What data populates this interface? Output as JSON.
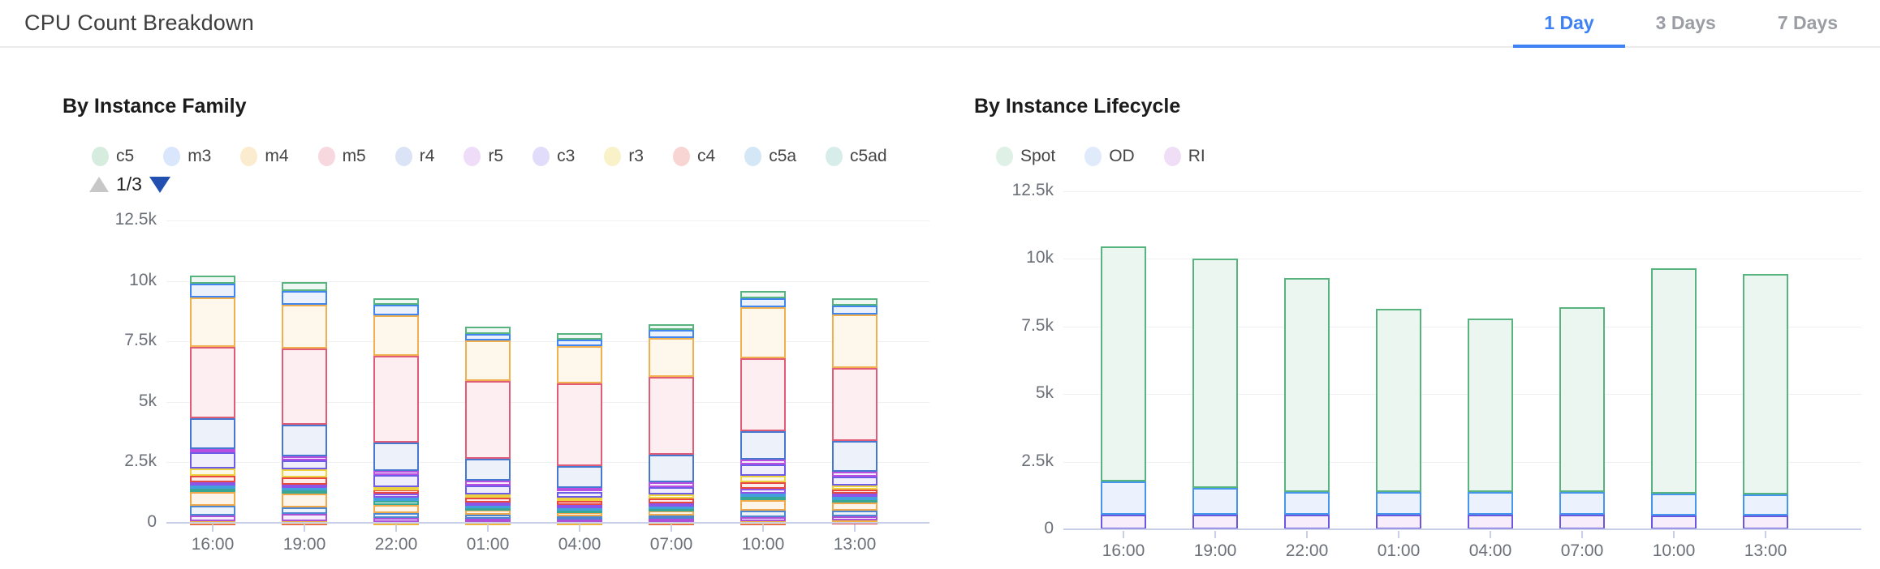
{
  "header": {
    "title": "CPU Count Breakdown",
    "tabs": [
      {
        "label": "1 Day",
        "active": true
      },
      {
        "label": "3 Days",
        "active": false
      },
      {
        "label": "7 Days",
        "active": false
      }
    ],
    "accent_color": "#3c82f5"
  },
  "chart_data": [
    {
      "type": "bar",
      "stacked": true,
      "title": "By Instance Family",
      "legend_position": "top",
      "legend_pages": "1/3",
      "grid": true,
      "categories": [
        "16:00",
        "19:00",
        "22:00",
        "01:00",
        "04:00",
        "07:00",
        "10:00",
        "13:00"
      ],
      "ylim": [
        0,
        12500
      ],
      "y_ticks": [
        "0",
        "2.5k",
        "5k",
        "7.5k",
        "10k",
        "12.5k"
      ],
      "stack_order": "top-to-bottom",
      "series": [
        {
          "name": "c5",
          "color": "#57b47f",
          "fill": "#eef7f2",
          "legend_dot": "#d5ecdf",
          "in_legend": true,
          "values": [
            350,
            370,
            260,
            280,
            260,
            220,
            280,
            300
          ]
        },
        {
          "name": "m3",
          "color": "#4185f0",
          "fill": "#ecf2fd",
          "legend_dot": "#d9e6fb",
          "in_legend": true,
          "values": [
            550,
            540,
            440,
            280,
            250,
            330,
            380,
            390
          ]
        },
        {
          "name": "m4",
          "color": "#f1b04f",
          "fill": "#fdf7ec",
          "legend_dot": "#fbeccf",
          "in_legend": true,
          "values": [
            2050,
            1810,
            1680,
            1680,
            1550,
            1630,
            2110,
            2210
          ]
        },
        {
          "name": "m5",
          "color": "#e15c77",
          "fill": "#fceef1",
          "legend_dot": "#f8d8df",
          "in_legend": true,
          "values": [
            2950,
            3180,
            3570,
            3200,
            3430,
            3210,
            3020,
            3020
          ]
        },
        {
          "name": "r4",
          "color": "#4678d2",
          "fill": "#ecf1fa",
          "legend_dot": "#dbe4f6",
          "in_legend": true,
          "values": [
            1280,
            1280,
            1180,
            930,
            900,
            1140,
            1170,
            1260
          ]
        },
        {
          "name": "r5",
          "color": "#b84fe0",
          "fill": "#f7eefb",
          "legend_dot": "#eedcf8",
          "in_legend": true,
          "values": [
            140,
            170,
            170,
            190,
            150,
            200,
            200,
            190
          ]
        },
        {
          "name": "c3",
          "color": "#6c5ce8",
          "fill": "#f0eefc",
          "legend_dot": "#e0dcf9",
          "in_legend": true,
          "values": [
            650,
            390,
            500,
            360,
            250,
            300,
            450,
            390
          ]
        },
        {
          "name": "r3",
          "color": "#ecd23e",
          "fill": "#fcf9e8",
          "legend_dot": "#f9f1c8",
          "in_legend": true,
          "values": [
            330,
            340,
            110,
            150,
            150,
            180,
            280,
            170
          ]
        },
        {
          "name": "c4",
          "color": "#e8483f",
          "fill": "#fcecea",
          "legend_dot": "#f8d4d2",
          "in_legend": true,
          "values": [
            260,
            270,
            170,
            200,
            160,
            170,
            280,
            160
          ]
        },
        {
          "name": null,
          "color": "#8a55e8",
          "fill": "#f3eefc",
          "legend_dot": "#e6dcfa",
          "in_legend": false,
          "values": [
            130,
            130,
            150,
            100,
            100,
            110,
            200,
            130
          ]
        },
        {
          "name": "c5a",
          "color": "#44a0dc",
          "fill": "#ecf5fb",
          "legend_dot": "#d4e7f6",
          "in_legend": true,
          "values": [
            130,
            130,
            140,
            100,
            100,
            100,
            120,
            110
          ]
        },
        {
          "name": "c5ad",
          "color": "#38a793",
          "fill": "#eaf6f4",
          "legend_dot": "#d6ede9",
          "in_legend": true,
          "values": [
            150,
            140,
            150,
            110,
            110,
            120,
            130,
            130
          ]
        },
        {
          "name": null,
          "color": "#f0a94a",
          "fill": "#fdf5ea",
          "legend_dot": "#fbeacd",
          "in_legend": false,
          "values": [
            540,
            560,
            340,
            200,
            150,
            180,
            440,
            330
          ]
        },
        {
          "name": null,
          "color": "#4d87d2",
          "fill": "#edf3fb",
          "legend_dot": "#dce7f6",
          "in_legend": false,
          "values": [
            410,
            270,
            220,
            150,
            120,
            130,
            260,
            230
          ]
        },
        {
          "name": null,
          "color": "#ad4fd8",
          "fill": "#f6eefa",
          "legend_dot": "#ecdcf6",
          "in_legend": false,
          "values": [
            230,
            300,
            140,
            120,
            100,
            120,
            190,
            180
          ]
        },
        {
          "name": null,
          "color": "#f0b43c",
          "fill": "#fdf6e8",
          "legend_dot": "#fbedca",
          "in_legend": false,
          "values": [
            30,
            20,
            20,
            20,
            20,
            20,
            20,
            30
          ]
        },
        {
          "name": null,
          "color": "#e4484e",
          "fill": "#fcecec",
          "legend_dot": "#f8d4d6",
          "in_legend": false,
          "values": [
            50,
            40,
            30,
            30,
            30,
            40,
            40,
            60
          ]
        }
      ]
    },
    {
      "type": "bar",
      "stacked": true,
      "title": "By Instance Lifecycle",
      "legend_position": "top",
      "legend_pages": null,
      "grid": true,
      "categories": [
        "16:00",
        "19:00",
        "22:00",
        "01:00",
        "04:00",
        "07:00",
        "10:00",
        "13:00"
      ],
      "ylim": [
        0,
        12500
      ],
      "y_ticks": [
        "0",
        "2.5k",
        "5k",
        "7.5k",
        "10k",
        "12.5k"
      ],
      "stack_order": "top-to-bottom",
      "series": [
        {
          "name": "Spot",
          "color": "#57b47f",
          "fill": "#ecf6f0",
          "legend_dot": "#dff0e7",
          "in_legend": true,
          "values": [
            8670,
            8480,
            7920,
            6770,
            6420,
            6820,
            8320,
            8150
          ]
        },
        {
          "name": "OD",
          "color": "#4596ec",
          "fill": "#ebf2fd",
          "legend_dot": "#dfeafb",
          "in_legend": true,
          "values": [
            1230,
            970,
            830,
            830,
            830,
            830,
            810,
            780
          ]
        },
        {
          "name": "RI",
          "color": "#6a58e0",
          "fill": "#f8eefb",
          "legend_dot": "#f0def7",
          "in_legend": true,
          "values": [
            550,
            550,
            550,
            550,
            550,
            550,
            520,
            520
          ]
        }
      ]
    }
  ]
}
